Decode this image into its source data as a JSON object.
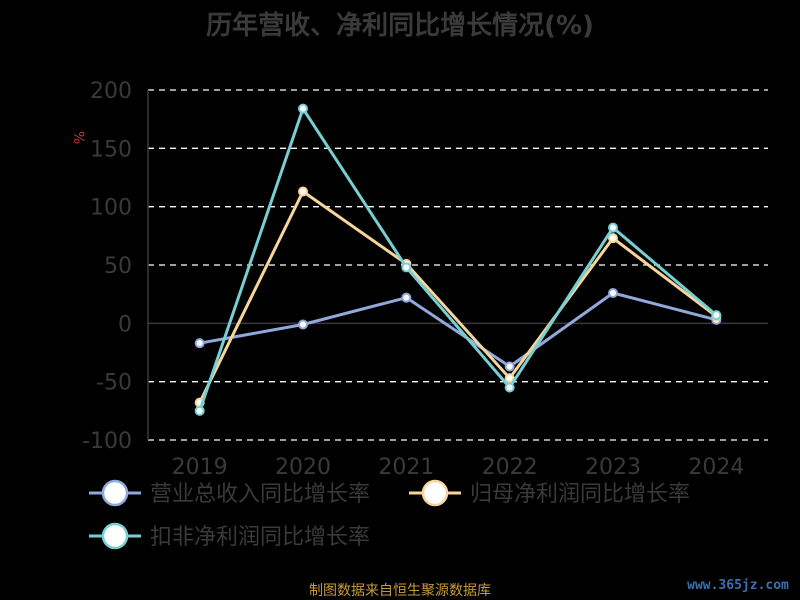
{
  "chart_data": {
    "type": "line",
    "title": "历年营收、净利同比增长情况(%)",
    "ylabel": "%",
    "ylim": [
      -100,
      200
    ],
    "yticks": [
      200,
      150,
      100,
      50,
      0,
      -50,
      -100
    ],
    "categories": [
      "2019",
      "2020",
      "2021",
      "2022",
      "2023",
      "2024"
    ],
    "grid": true,
    "legend_position": "bottom",
    "series": [
      {
        "name": "营业总收入同比增长率",
        "color": "#8fa9dc",
        "values": [
          -17,
          -1,
          22,
          -37,
          26,
          3
        ]
      },
      {
        "name": "归母净利润同比增长率",
        "color": "#f6d59a",
        "values": [
          -68,
          113,
          51,
          -47,
          73,
          6
        ]
      },
      {
        "name": "扣非净利润同比增长率",
        "color": "#78cfd3",
        "values": [
          -75,
          184,
          48,
          -55,
          82,
          7
        ]
      }
    ]
  },
  "footer": {
    "source": "制图数据来自恒生聚源数据库",
    "watermark": "www.365jz.com"
  }
}
